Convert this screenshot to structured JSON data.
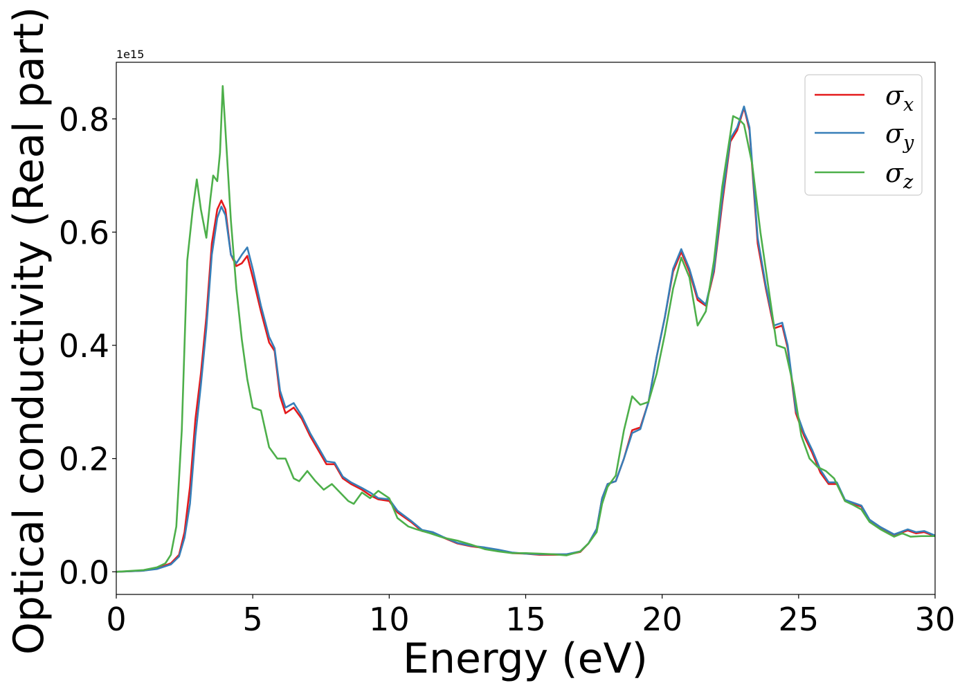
{
  "chart_data": {
    "type": "line",
    "xlabel": "Energy (eV)",
    "ylabel": "Optical conductivity (Real part)",
    "y_offset_label": "1e15",
    "xlim": [
      0,
      30
    ],
    "ylim": [
      -0.04,
      0.9
    ],
    "x_ticks": [
      0,
      5,
      10,
      15,
      20,
      25,
      30
    ],
    "x_tick_labels": [
      "0",
      "5",
      "10",
      "15",
      "20",
      "25",
      "30"
    ],
    "y_ticks": [
      0.0,
      0.2,
      0.4,
      0.6,
      0.8
    ],
    "y_tick_labels": [
      "0.0",
      "0.2",
      "0.4",
      "0.6",
      "0.8"
    ],
    "grid": false,
    "legend_position": "top-right",
    "series": [
      {
        "name": "σx",
        "legend_base": "σ",
        "legend_sub": "x",
        "color": "#e41a1c",
        "points": [
          [
            0,
            0
          ],
          [
            1,
            0.002
          ],
          [
            1.5,
            0.006
          ],
          [
            2,
            0.015
          ],
          [
            2.3,
            0.03
          ],
          [
            2.5,
            0.07
          ],
          [
            2.7,
            0.15
          ],
          [
            2.9,
            0.27
          ],
          [
            3.1,
            0.35
          ],
          [
            3.3,
            0.45
          ],
          [
            3.5,
            0.58
          ],
          [
            3.7,
            0.64
          ],
          [
            3.85,
            0.656
          ],
          [
            4,
            0.64
          ],
          [
            4.2,
            0.56
          ],
          [
            4.4,
            0.54
          ],
          [
            4.6,
            0.545
          ],
          [
            4.8,
            0.558
          ],
          [
            5,
            0.52
          ],
          [
            5.3,
            0.46
          ],
          [
            5.6,
            0.405
          ],
          [
            5.8,
            0.39
          ],
          [
            6,
            0.31
          ],
          [
            6.2,
            0.28
          ],
          [
            6.5,
            0.29
          ],
          [
            6.8,
            0.27
          ],
          [
            7.1,
            0.24
          ],
          [
            7.4,
            0.215
          ],
          [
            7.7,
            0.19
          ],
          [
            8,
            0.19
          ],
          [
            8.3,
            0.165
          ],
          [
            8.6,
            0.155
          ],
          [
            9,
            0.145
          ],
          [
            9.3,
            0.135
          ],
          [
            9.6,
            0.128
          ],
          [
            10,
            0.125
          ],
          [
            10.3,
            0.105
          ],
          [
            10.8,
            0.088
          ],
          [
            11.2,
            0.072
          ],
          [
            11.6,
            0.068
          ],
          [
            12,
            0.06
          ],
          [
            12.5,
            0.05
          ],
          [
            13,
            0.045
          ],
          [
            13.5,
            0.042
          ],
          [
            14,
            0.038
          ],
          [
            14.5,
            0.033
          ],
          [
            15,
            0.032
          ],
          [
            15.5,
            0.03
          ],
          [
            16,
            0.03
          ],
          [
            16.5,
            0.03
          ],
          [
            17,
            0.035
          ],
          [
            17.3,
            0.05
          ],
          [
            17.6,
            0.075
          ],
          [
            17.8,
            0.13
          ],
          [
            18,
            0.155
          ],
          [
            18.3,
            0.16
          ],
          [
            18.6,
            0.2
          ],
          [
            18.9,
            0.25
          ],
          [
            19.2,
            0.255
          ],
          [
            19.5,
            0.3
          ],
          [
            19.8,
            0.38
          ],
          [
            20.1,
            0.45
          ],
          [
            20.4,
            0.53
          ],
          [
            20.7,
            0.565
          ],
          [
            21,
            0.53
          ],
          [
            21.3,
            0.48
          ],
          [
            21.6,
            0.47
          ],
          [
            21.9,
            0.53
          ],
          [
            22.2,
            0.65
          ],
          [
            22.5,
            0.76
          ],
          [
            22.75,
            0.78
          ],
          [
            23,
            0.82
          ],
          [
            23.2,
            0.78
          ],
          [
            23.5,
            0.58
          ],
          [
            23.8,
            0.5
          ],
          [
            24.1,
            0.43
          ],
          [
            24.4,
            0.435
          ],
          [
            24.6,
            0.395
          ],
          [
            24.9,
            0.28
          ],
          [
            25.2,
            0.24
          ],
          [
            25.5,
            0.21
          ],
          [
            25.8,
            0.175
          ],
          [
            26.1,
            0.155
          ],
          [
            26.4,
            0.155
          ],
          [
            26.7,
            0.125
          ],
          [
            27,
            0.12
          ],
          [
            27.3,
            0.115
          ],
          [
            27.6,
            0.09
          ],
          [
            28,
            0.078
          ],
          [
            28.5,
            0.065
          ],
          [
            29,
            0.073
          ],
          [
            29.3,
            0.068
          ],
          [
            29.6,
            0.07
          ],
          [
            30,
            0.063
          ]
        ]
      },
      {
        "name": "σy",
        "legend_base": "σ",
        "legend_sub": "y",
        "color": "#377eb8",
        "points": [
          [
            0,
            0
          ],
          [
            1,
            0.002
          ],
          [
            1.5,
            0.005
          ],
          [
            2,
            0.013
          ],
          [
            2.3,
            0.027
          ],
          [
            2.5,
            0.06
          ],
          [
            2.7,
            0.12
          ],
          [
            2.9,
            0.24
          ],
          [
            3.1,
            0.33
          ],
          [
            3.3,
            0.43
          ],
          [
            3.5,
            0.56
          ],
          [
            3.7,
            0.625
          ],
          [
            3.85,
            0.645
          ],
          [
            4,
            0.63
          ],
          [
            4.2,
            0.56
          ],
          [
            4.4,
            0.545
          ],
          [
            4.6,
            0.56
          ],
          [
            4.8,
            0.573
          ],
          [
            5,
            0.535
          ],
          [
            5.3,
            0.47
          ],
          [
            5.6,
            0.415
          ],
          [
            5.8,
            0.395
          ],
          [
            6,
            0.32
          ],
          [
            6.2,
            0.29
          ],
          [
            6.5,
            0.298
          ],
          [
            6.8,
            0.275
          ],
          [
            7.1,
            0.245
          ],
          [
            7.4,
            0.22
          ],
          [
            7.7,
            0.195
          ],
          [
            8,
            0.193
          ],
          [
            8.3,
            0.168
          ],
          [
            8.6,
            0.158
          ],
          [
            9,
            0.148
          ],
          [
            9.3,
            0.14
          ],
          [
            9.6,
            0.13
          ],
          [
            10,
            0.128
          ],
          [
            10.3,
            0.108
          ],
          [
            10.8,
            0.09
          ],
          [
            11.2,
            0.074
          ],
          [
            11.6,
            0.07
          ],
          [
            12,
            0.061
          ],
          [
            12.5,
            0.051
          ],
          [
            13,
            0.046
          ],
          [
            13.5,
            0.043
          ],
          [
            14,
            0.039
          ],
          [
            14.5,
            0.034
          ],
          [
            15,
            0.032
          ],
          [
            15.5,
            0.031
          ],
          [
            16,
            0.031
          ],
          [
            16.5,
            0.031
          ],
          [
            17,
            0.036
          ],
          [
            17.3,
            0.05
          ],
          [
            17.6,
            0.076
          ],
          [
            17.8,
            0.13
          ],
          [
            18,
            0.155
          ],
          [
            18.3,
            0.16
          ],
          [
            18.6,
            0.2
          ],
          [
            18.9,
            0.245
          ],
          [
            19.2,
            0.252
          ],
          [
            19.5,
            0.3
          ],
          [
            19.8,
            0.38
          ],
          [
            20.1,
            0.45
          ],
          [
            20.4,
            0.535
          ],
          [
            20.7,
            0.57
          ],
          [
            21,
            0.535
          ],
          [
            21.3,
            0.485
          ],
          [
            21.6,
            0.472
          ],
          [
            21.9,
            0.535
          ],
          [
            22.2,
            0.66
          ],
          [
            22.5,
            0.765
          ],
          [
            22.75,
            0.785
          ],
          [
            23,
            0.822
          ],
          [
            23.2,
            0.785
          ],
          [
            23.5,
            0.59
          ],
          [
            23.8,
            0.505
          ],
          [
            24.1,
            0.435
          ],
          [
            24.4,
            0.44
          ],
          [
            24.6,
            0.4
          ],
          [
            24.9,
            0.285
          ],
          [
            25.2,
            0.245
          ],
          [
            25.5,
            0.215
          ],
          [
            25.8,
            0.18
          ],
          [
            26.1,
            0.158
          ],
          [
            26.4,
            0.158
          ],
          [
            26.7,
            0.127
          ],
          [
            27,
            0.122
          ],
          [
            27.3,
            0.117
          ],
          [
            27.6,
            0.092
          ],
          [
            28,
            0.079
          ],
          [
            28.5,
            0.066
          ],
          [
            29,
            0.075
          ],
          [
            29.3,
            0.07
          ],
          [
            29.6,
            0.072
          ],
          [
            30,
            0.064
          ]
        ]
      },
      {
        "name": "σz",
        "legend_base": "σ",
        "legend_sub": "z",
        "color": "#4daf4a",
        "points": [
          [
            0,
            0
          ],
          [
            1,
            0.003
          ],
          [
            1.5,
            0.008
          ],
          [
            1.8,
            0.015
          ],
          [
            2.0,
            0.03
          ],
          [
            2.2,
            0.08
          ],
          [
            2.4,
            0.25
          ],
          [
            2.6,
            0.55
          ],
          [
            2.8,
            0.64
          ],
          [
            2.95,
            0.693
          ],
          [
            3.1,
            0.64
          ],
          [
            3.3,
            0.59
          ],
          [
            3.45,
            0.66
          ],
          [
            3.55,
            0.7
          ],
          [
            3.7,
            0.69
          ],
          [
            3.8,
            0.74
          ],
          [
            3.9,
            0.858
          ],
          [
            4,
            0.78
          ],
          [
            4.2,
            0.62
          ],
          [
            4.4,
            0.5
          ],
          [
            4.6,
            0.41
          ],
          [
            4.8,
            0.34
          ],
          [
            5,
            0.29
          ],
          [
            5.3,
            0.285
          ],
          [
            5.6,
            0.22
          ],
          [
            5.9,
            0.2
          ],
          [
            6.2,
            0.2
          ],
          [
            6.5,
            0.165
          ],
          [
            6.7,
            0.16
          ],
          [
            7,
            0.178
          ],
          [
            7.3,
            0.16
          ],
          [
            7.6,
            0.145
          ],
          [
            7.9,
            0.155
          ],
          [
            8.2,
            0.14
          ],
          [
            8.5,
            0.125
          ],
          [
            8.7,
            0.12
          ],
          [
            9,
            0.14
          ],
          [
            9.3,
            0.13
          ],
          [
            9.6,
            0.143
          ],
          [
            10,
            0.13
          ],
          [
            10.3,
            0.095
          ],
          [
            10.7,
            0.08
          ],
          [
            11,
            0.075
          ],
          [
            11.5,
            0.068
          ],
          [
            12,
            0.06
          ],
          [
            12.5,
            0.055
          ],
          [
            13,
            0.048
          ],
          [
            13.5,
            0.04
          ],
          [
            14,
            0.036
          ],
          [
            14.5,
            0.033
          ],
          [
            15,
            0.033
          ],
          [
            15.5,
            0.032
          ],
          [
            16,
            0.031
          ],
          [
            16.5,
            0.029
          ],
          [
            17,
            0.036
          ],
          [
            17.3,
            0.05
          ],
          [
            17.6,
            0.07
          ],
          [
            17.8,
            0.12
          ],
          [
            18,
            0.15
          ],
          [
            18.3,
            0.17
          ],
          [
            18.6,
            0.25
          ],
          [
            18.9,
            0.31
          ],
          [
            19.2,
            0.295
          ],
          [
            19.5,
            0.3
          ],
          [
            19.8,
            0.35
          ],
          [
            20.1,
            0.42
          ],
          [
            20.4,
            0.5
          ],
          [
            20.7,
            0.555
          ],
          [
            21,
            0.52
          ],
          [
            21.3,
            0.435
          ],
          [
            21.6,
            0.46
          ],
          [
            21.9,
            0.55
          ],
          [
            22.2,
            0.68
          ],
          [
            22.6,
            0.805
          ],
          [
            22.8,
            0.8
          ],
          [
            23,
            0.79
          ],
          [
            23.3,
            0.72
          ],
          [
            23.6,
            0.6
          ],
          [
            23.9,
            0.5
          ],
          [
            24.2,
            0.4
          ],
          [
            24.5,
            0.395
          ],
          [
            24.8,
            0.33
          ],
          [
            25.1,
            0.24
          ],
          [
            25.4,
            0.2
          ],
          [
            25.7,
            0.185
          ],
          [
            26,
            0.178
          ],
          [
            26.3,
            0.165
          ],
          [
            26.7,
            0.125
          ],
          [
            27,
            0.118
          ],
          [
            27.3,
            0.11
          ],
          [
            27.6,
            0.088
          ],
          [
            28,
            0.075
          ],
          [
            28.5,
            0.062
          ],
          [
            28.8,
            0.068
          ],
          [
            29.1,
            0.062
          ],
          [
            29.5,
            0.063
          ],
          [
            30,
            0.063
          ]
        ]
      }
    ]
  }
}
